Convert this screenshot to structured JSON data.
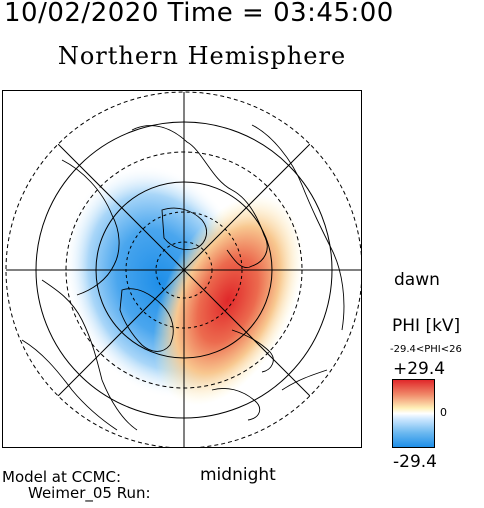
{
  "header": {
    "date_time": "10/02/2020 Time = 03:45:00"
  },
  "plot": {
    "title": "Northern Hemisphere",
    "dawn_label": "dawn",
    "midnight_label": "midnight"
  },
  "colorbar": {
    "label": "PHI [kV]",
    "range_text": "-29.4<PHI<26",
    "max_label": "+29.4",
    "zero_label": "0",
    "min_label": "-29.4",
    "colors": {
      "positive": "#e0282a",
      "negative": "#1e8ee8",
      "neutral": "#ffffff"
    }
  },
  "footer": {
    "model_label": "Model at CCMC:",
    "run_label": "Weimer_05 Run:"
  }
}
